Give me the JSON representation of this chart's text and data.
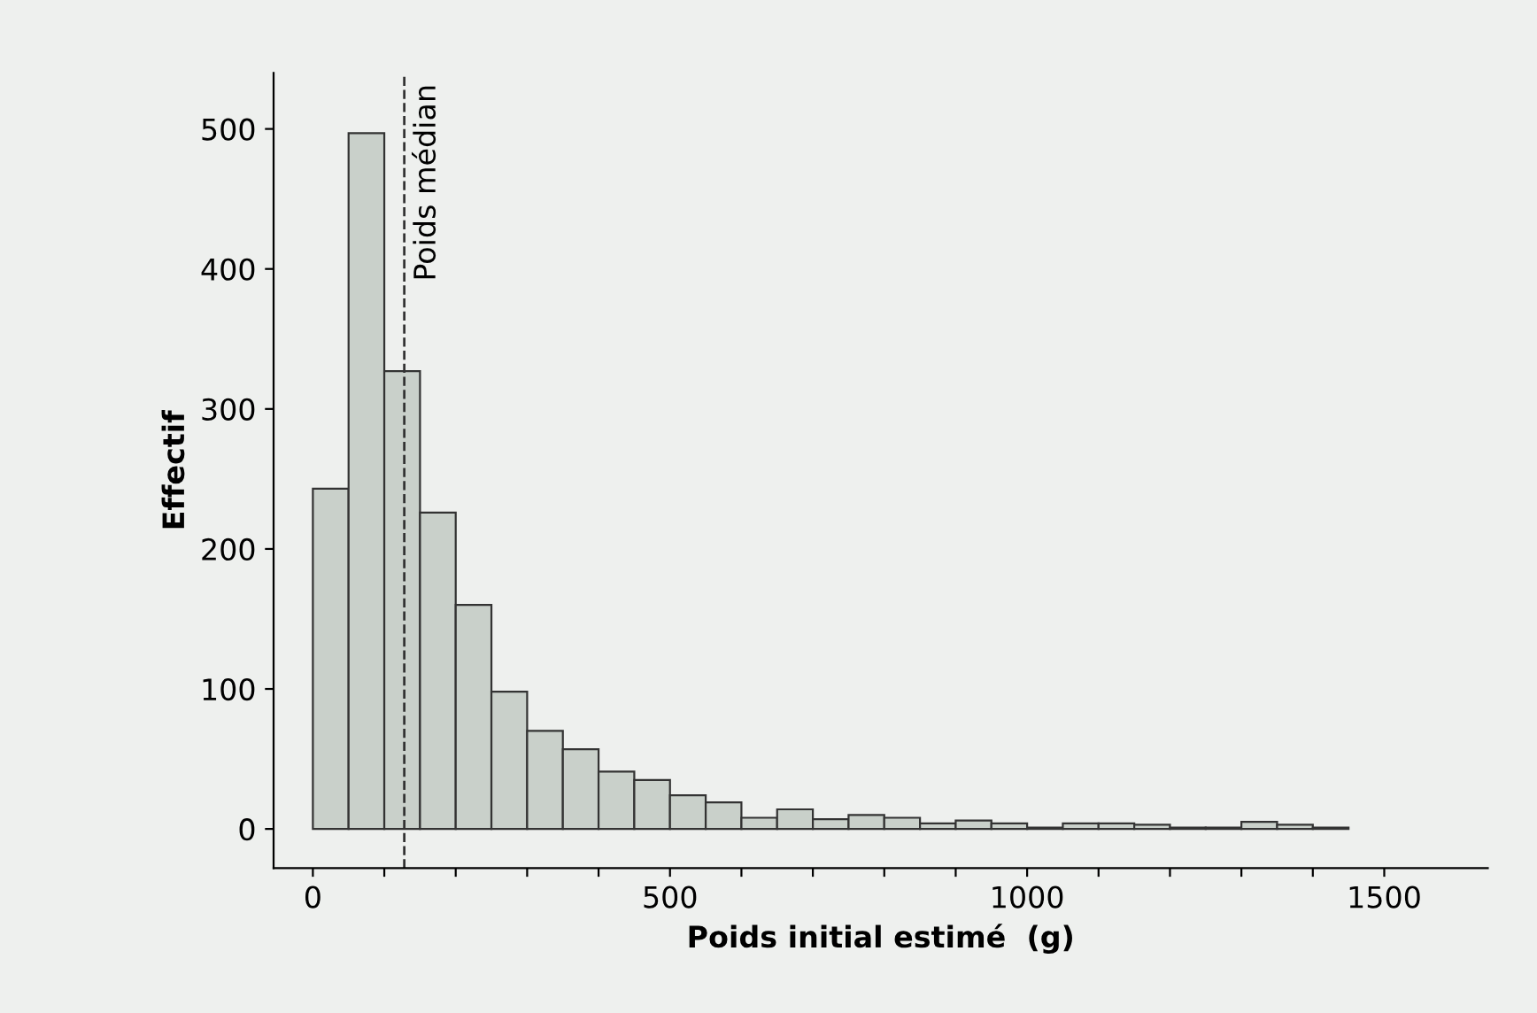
{
  "chart_data": {
    "type": "histogram",
    "xlabel": "Poids initial estimé  (g)",
    "ylabel": "Effectif",
    "bins": [
      0,
      50,
      100,
      150,
      200,
      250,
      300,
      350,
      400,
      450,
      500,
      550,
      600,
      650,
      700,
      750,
      800,
      850,
      900,
      950,
      1000,
      1050,
      1100,
      1150,
      1200,
      1250,
      1300,
      1350,
      1400,
      1450
    ],
    "values": [
      243,
      497,
      327,
      226,
      160,
      98,
      70,
      57,
      41,
      35,
      24,
      19,
      8,
      14,
      7,
      10,
      8,
      4,
      6,
      4,
      1,
      4,
      4,
      3,
      1,
      1,
      5,
      3,
      1
    ],
    "color": "#c9d0ca",
    "xlim": [
      -55,
      1645
    ],
    "ylim": [
      -28,
      540
    ],
    "xticks": [
      0,
      {
        "value": 100,
        "label": null
      },
      {
        "value": 200,
        "label": null
      },
      {
        "value": 300,
        "label": null
      },
      {
        "value": 400,
        "label": null
      },
      500,
      {
        "value": 600,
        "label": null
      },
      {
        "value": 700,
        "label": null
      },
      {
        "value": 800,
        "label": null
      },
      {
        "value": 900,
        "label": null
      },
      1000,
      {
        "value": 1100,
        "label": null
      },
      {
        "value": 1200,
        "label": null
      },
      {
        "value": 1300,
        "label": null
      },
      {
        "value": 1400,
        "label": null
      },
      1500
    ],
    "yticks": [
      0,
      100,
      200,
      300,
      400,
      500
    ],
    "ref_lines": [
      {
        "axis": "x",
        "value": 128,
        "label": "Poids médian",
        "line_style": "dashed",
        "color": "#333333"
      }
    ],
    "grid": false,
    "legend": false
  }
}
